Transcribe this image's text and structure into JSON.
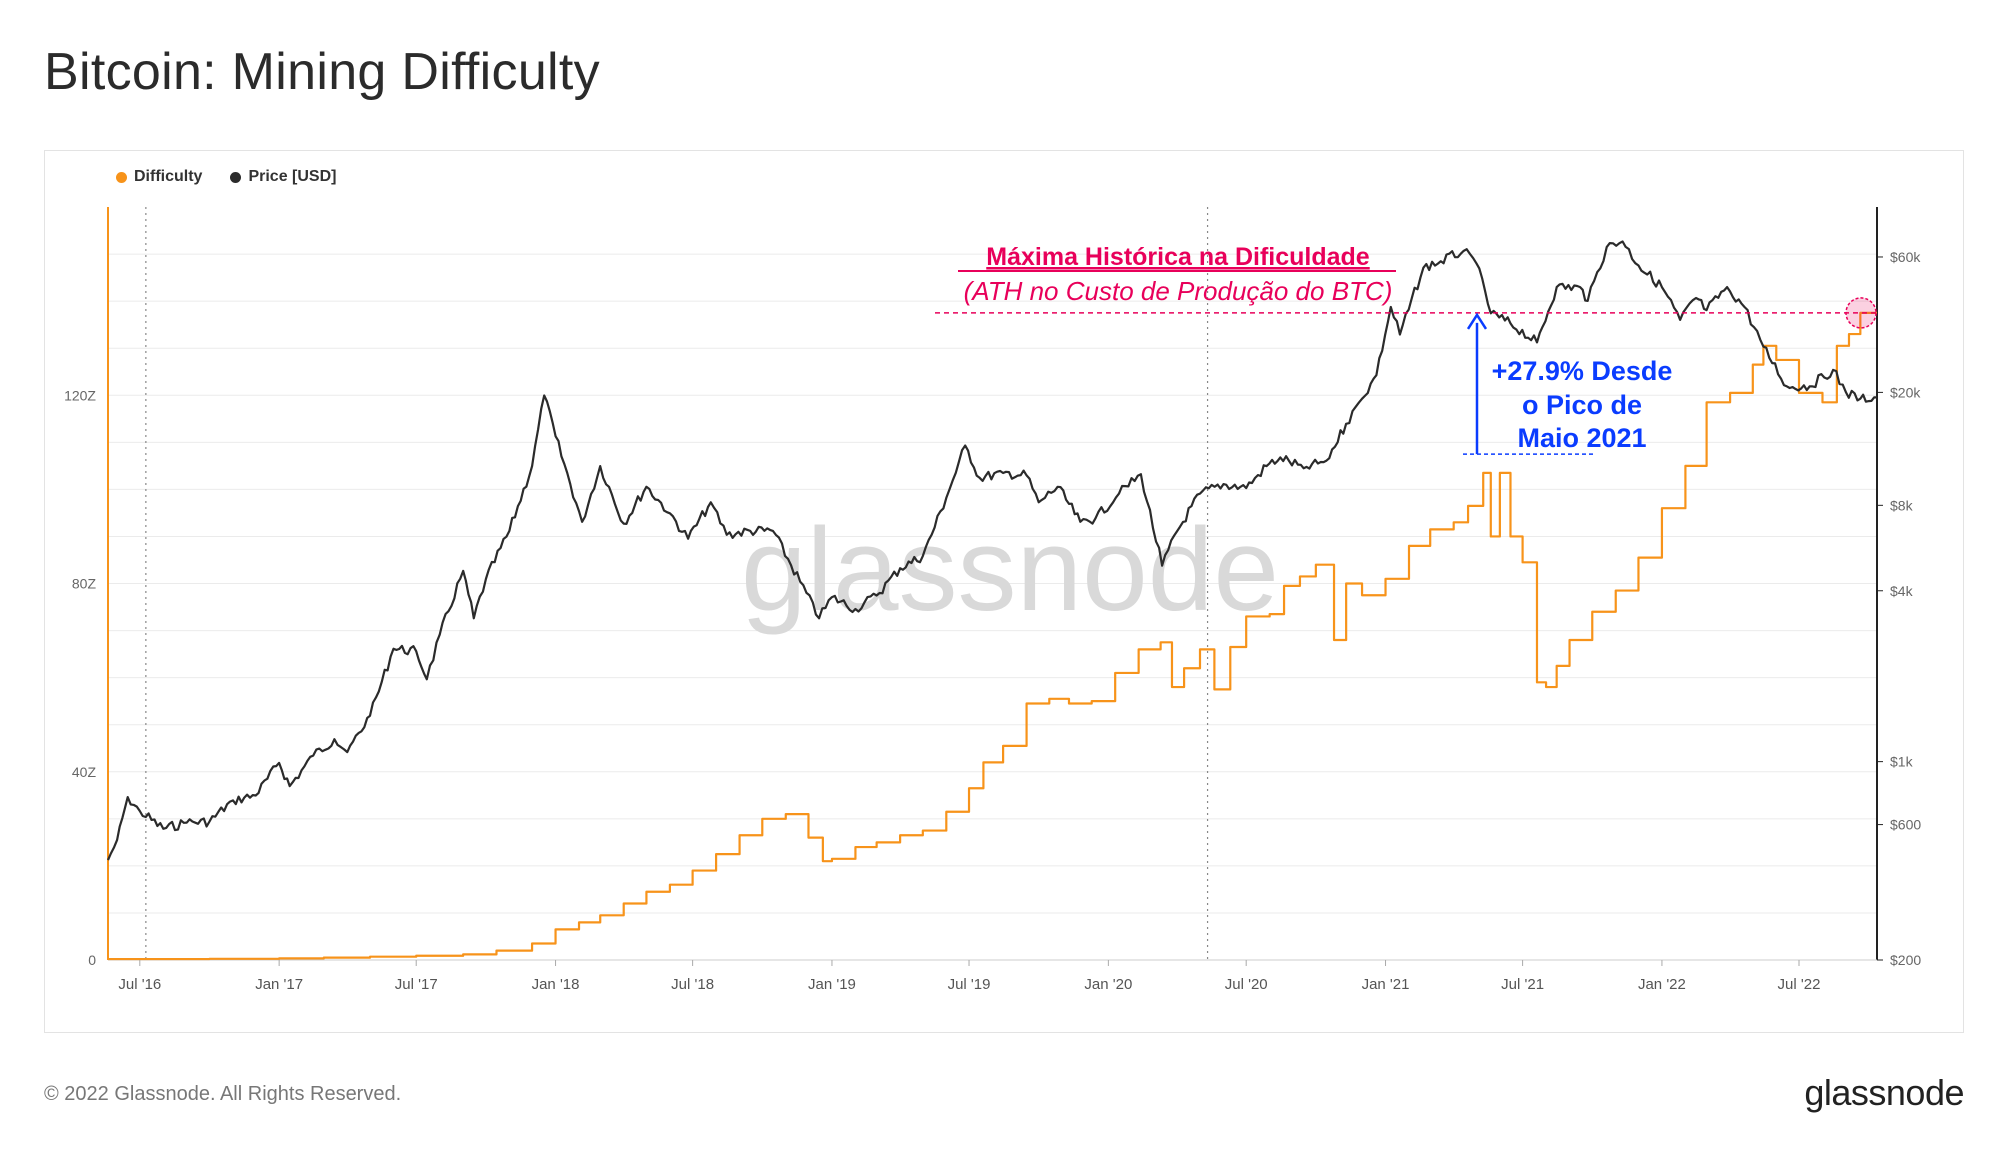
{
  "page": {
    "title": "Bitcoin: Mining Difficulty",
    "footer_copyright": "© 2022 Glassnode. All Rights Reserved.",
    "footer_logo": "glassnode",
    "watermark": "glassnode"
  },
  "colors": {
    "difficulty": "#f7931a",
    "price": "#2b2b2b",
    "annotation_red": "#e8005a",
    "annotation_blue": "#0a3cff",
    "grid": "#ebebeb"
  },
  "chart_data": {
    "type": "line",
    "legend": [
      {
        "name": "Difficulty",
        "color": "#f7931a"
      },
      {
        "name": "Price [USD]",
        "color": "#2b2b2b"
      }
    ],
    "legend_position": "top-left",
    "x_ticks": [
      "Jul '16",
      "Jan '17",
      "Jul '17",
      "Jan '18",
      "Jul '18",
      "Jan '19",
      "Jul '19",
      "Jan '20",
      "Jul '20",
      "Jan '21",
      "Jul '21",
      "Jan '22",
      "Jul '22"
    ],
    "y_left": {
      "ticks": [
        "0",
        "40Z",
        "80Z",
        "120Z"
      ],
      "range": [
        0,
        160
      ],
      "unit": "Z"
    },
    "y_right": {
      "ticks": [
        "$200",
        "$600",
        "$1k",
        "$4k",
        "$8k",
        "$20k",
        "$60k"
      ],
      "scale": "log",
      "range": [
        200,
        90000
      ]
    },
    "x_range": [
      "2016-05-20",
      "2022-10-12"
    ],
    "series": [
      {
        "name": "Difficulty",
        "axis": "left",
        "points": [
          [
            "2016-05-20",
            0.2
          ],
          [
            "2016-07-01",
            0.2
          ],
          [
            "2016-10-01",
            0.25
          ],
          [
            "2017-01-01",
            0.35
          ],
          [
            "2017-03-01",
            0.5
          ],
          [
            "2017-05-01",
            0.7
          ],
          [
            "2017-07-01",
            0.9
          ],
          [
            "2017-09-01",
            1.2
          ],
          [
            "2017-10-15",
            2.0
          ],
          [
            "2017-12-01",
            3.5
          ],
          [
            "2018-01-01",
            6.5
          ],
          [
            "2018-02-01",
            8.0
          ],
          [
            "2018-03-01",
            9.5
          ],
          [
            "2018-04-01",
            12.0
          ],
          [
            "2018-05-01",
            14.5
          ],
          [
            "2018-06-01",
            16.0
          ],
          [
            "2018-07-01",
            19.0
          ],
          [
            "2018-08-01",
            22.5
          ],
          [
            "2018-09-01",
            26.5
          ],
          [
            "2018-10-01",
            30.0
          ],
          [
            "2018-11-01",
            31.0
          ],
          [
            "2018-12-01",
            26.0
          ],
          [
            "2018-12-20",
            21.0
          ],
          [
            "2019-01-01",
            21.5
          ],
          [
            "2019-02-01",
            24.0
          ],
          [
            "2019-03-01",
            25.0
          ],
          [
            "2019-04-01",
            26.5
          ],
          [
            "2019-05-01",
            27.5
          ],
          [
            "2019-06-01",
            31.5
          ],
          [
            "2019-07-01",
            36.5
          ],
          [
            "2019-07-20",
            42.0
          ],
          [
            "2019-08-15",
            45.5
          ],
          [
            "2019-09-15",
            54.5
          ],
          [
            "2019-10-15",
            55.5
          ],
          [
            "2019-11-10",
            54.5
          ],
          [
            "2019-12-10",
            55.0
          ],
          [
            "2020-01-10",
            61.0
          ],
          [
            "2020-02-10",
            66.0
          ],
          [
            "2020-03-10",
            67.5
          ],
          [
            "2020-03-25",
            58.0
          ],
          [
            "2020-04-10",
            62.0
          ],
          [
            "2020-05-01",
            66.0
          ],
          [
            "2020-05-20",
            57.5
          ],
          [
            "2020-06-10",
            66.5
          ],
          [
            "2020-07-01",
            73.0
          ],
          [
            "2020-08-01",
            73.5
          ],
          [
            "2020-08-20",
            79.5
          ],
          [
            "2020-09-10",
            81.5
          ],
          [
            "2020-10-01",
            84.0
          ],
          [
            "2020-10-25",
            68.0
          ],
          [
            "2020-11-10",
            80.0
          ],
          [
            "2020-12-01",
            77.5
          ],
          [
            "2021-01-01",
            81.0
          ],
          [
            "2021-02-01",
            88.0
          ],
          [
            "2021-03-01",
            91.5
          ],
          [
            "2021-04-01",
            93.0
          ],
          [
            "2021-04-20",
            96.5
          ],
          [
            "2021-05-10",
            103.5
          ],
          [
            "2021-05-20",
            90.0
          ],
          [
            "2021-06-01",
            103.5
          ],
          [
            "2021-06-15",
            90.0
          ],
          [
            "2021-07-01",
            84.5
          ],
          [
            "2021-07-20",
            59.0
          ],
          [
            "2021-08-01",
            58.0
          ],
          [
            "2021-08-15",
            62.5
          ],
          [
            "2021-09-01",
            68.0
          ],
          [
            "2021-10-01",
            74.0
          ],
          [
            "2021-11-01",
            78.5
          ],
          [
            "2021-12-01",
            85.5
          ],
          [
            "2022-01-01",
            96.0
          ],
          [
            "2022-02-01",
            105.0
          ],
          [
            "2022-03-01",
            118.5
          ],
          [
            "2022-04-01",
            120.5
          ],
          [
            "2022-05-01",
            126.5
          ],
          [
            "2022-05-15",
            130.5
          ],
          [
            "2022-06-01",
            127.5
          ],
          [
            "2022-07-01",
            120.5
          ],
          [
            "2022-08-01",
            118.5
          ],
          [
            "2022-08-20",
            130.5
          ],
          [
            "2022-09-05",
            133.0
          ],
          [
            "2022-09-20",
            137.5
          ],
          [
            "2022-10-12",
            137.5
          ]
        ]
      },
      {
        "name": "Price [USD]",
        "axis": "right",
        "points": [
          [
            "2016-05-20",
            450
          ],
          [
            "2016-06-01",
            530
          ],
          [
            "2016-06-15",
            750
          ],
          [
            "2016-07-01",
            670
          ],
          [
            "2016-08-01",
            580
          ],
          [
            "2016-09-01",
            610
          ],
          [
            "2016-10-01",
            615
          ],
          [
            "2016-11-01",
            730
          ],
          [
            "2016-12-01",
            760
          ],
          [
            "2017-01-01",
            990
          ],
          [
            "2017-01-15",
            820
          ],
          [
            "2017-02-15",
            1050
          ],
          [
            "2017-03-15",
            1200
          ],
          [
            "2017-04-01",
            1080
          ],
          [
            "2017-05-01",
            1450
          ],
          [
            "2017-06-01",
            2500
          ],
          [
            "2017-07-01",
            2450
          ],
          [
            "2017-07-15",
            1950
          ],
          [
            "2017-08-01",
            2800
          ],
          [
            "2017-09-01",
            4700
          ],
          [
            "2017-09-15",
            3200
          ],
          [
            "2017-10-01",
            4400
          ],
          [
            "2017-11-01",
            6500
          ],
          [
            "2017-12-01",
            11000
          ],
          [
            "2017-12-17",
            19500
          ],
          [
            "2018-01-01",
            14000
          ],
          [
            "2018-02-05",
            7000
          ],
          [
            "2018-03-01",
            11000
          ],
          [
            "2018-04-01",
            6900
          ],
          [
            "2018-05-01",
            9300
          ],
          [
            "2018-06-01",
            7500
          ],
          [
            "2018-06-25",
            6100
          ],
          [
            "2018-07-25",
            8200
          ],
          [
            "2018-08-15",
            6300
          ],
          [
            "2018-09-15",
            6500
          ],
          [
            "2018-10-15",
            6500
          ],
          [
            "2018-11-20",
            4300
          ],
          [
            "2018-12-15",
            3200
          ],
          [
            "2019-01-01",
            3800
          ],
          [
            "2019-02-01",
            3450
          ],
          [
            "2019-03-01",
            3850
          ],
          [
            "2019-04-01",
            4800
          ],
          [
            "2019-05-01",
            5300
          ],
          [
            "2019-06-01",
            8500
          ],
          [
            "2019-06-26",
            13000
          ],
          [
            "2019-07-15",
            10000
          ],
          [
            "2019-08-15",
            10400
          ],
          [
            "2019-09-15",
            10200
          ],
          [
            "2019-10-01",
            8200
          ],
          [
            "2019-10-26",
            9300
          ],
          [
            "2019-11-25",
            7000
          ],
          [
            "2019-12-15",
            7200
          ],
          [
            "2020-01-15",
            8800
          ],
          [
            "2020-02-13",
            10300
          ],
          [
            "2020-03-12",
            4900
          ],
          [
            "2020-04-01",
            6500
          ],
          [
            "2020-05-01",
            8800
          ],
          [
            "2020-06-01",
            9500
          ],
          [
            "2020-07-01",
            9200
          ],
          [
            "2020-07-28",
            11000
          ],
          [
            "2020-08-15",
            11800
          ],
          [
            "2020-09-15",
            10800
          ],
          [
            "2020-10-15",
            11500
          ],
          [
            "2020-11-10",
            15500
          ],
          [
            "2020-12-01",
            19000
          ],
          [
            "2020-12-20",
            23000
          ],
          [
            "2021-01-08",
            40000
          ],
          [
            "2021-01-20",
            32000
          ],
          [
            "2021-02-20",
            55000
          ],
          [
            "2021-03-15",
            58000
          ],
          [
            "2021-04-14",
            63000
          ],
          [
            "2021-05-01",
            57000
          ],
          [
            "2021-05-20",
            38000
          ],
          [
            "2021-06-15",
            35000
          ],
          [
            "2021-07-20",
            30000
          ],
          [
            "2021-08-15",
            47000
          ],
          [
            "2021-09-15",
            47000
          ],
          [
            "2021-09-25",
            42000
          ],
          [
            "2021-10-20",
            65000
          ],
          [
            "2021-11-10",
            68000
          ],
          [
            "2021-12-01",
            56000
          ],
          [
            "2022-01-01",
            47000
          ],
          [
            "2022-01-25",
            36000
          ],
          [
            "2022-02-15",
            43000
          ],
          [
            "2022-03-01",
            39000
          ],
          [
            "2022-03-28",
            47000
          ],
          [
            "2022-04-20",
            40000
          ],
          [
            "2022-05-15",
            29000
          ],
          [
            "2022-06-15",
            21000
          ],
          [
            "2022-07-15",
            21000
          ],
          [
            "2022-08-15",
            24000
          ],
          [
            "2022-09-01",
            20000
          ],
          [
            "2022-09-20",
            19000
          ],
          [
            "2022-10-12",
            19200
          ]
        ]
      }
    ],
    "annotations": {
      "ath_title": "Máxima Histórica na Dificuldade",
      "ath_subtitle": "(ATH no Custo de Produção do BTC)",
      "growth_line1": "+27.9% Desde",
      "growth_line2": "o Pico de",
      "growth_line3": "Maio 2021",
      "ath_value": 137.5,
      "may_2021_peak": 107.5
    },
    "grid": true
  }
}
